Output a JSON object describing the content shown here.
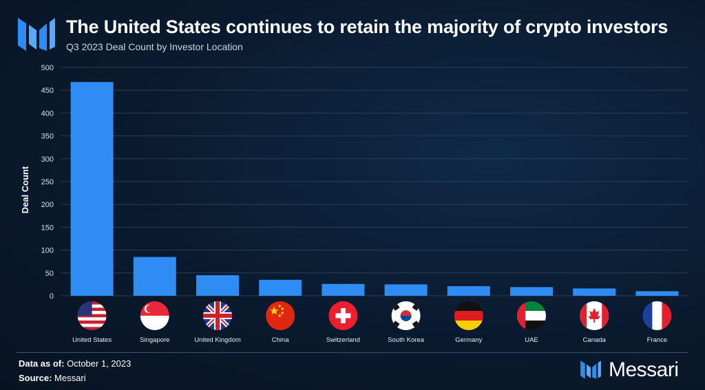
{
  "header": {
    "title": "The United States continues to retain the majority of crypto investors",
    "subtitle": "Q3 2023 Deal Count by Investor Location"
  },
  "colors": {
    "accent": "#2f8cf3",
    "background": "#0a1a2e",
    "grid": "#2b3f58"
  },
  "chart_data": {
    "type": "bar",
    "title": "The United States continues to retain the majority of crypto investors",
    "subtitle": "Q3 2023 Deal Count by Investor Location",
    "xlabel": "",
    "ylabel": "Deal Count",
    "ylim": [
      0,
      500
    ],
    "yticks": [
      0,
      50,
      100,
      150,
      200,
      250,
      300,
      350,
      400,
      450,
      500
    ],
    "grid": true,
    "categories": [
      "United States",
      "Singapore",
      "United Kingdom",
      "China",
      "Switzerland",
      "South Korea",
      "Germany",
      "UAE",
      "Canada",
      "France"
    ],
    "values": [
      468,
      85,
      45,
      35,
      26,
      25,
      21,
      19,
      16,
      10
    ],
    "category_icons": [
      "us-flag-icon",
      "singapore-flag-icon",
      "uk-flag-icon",
      "china-flag-icon",
      "switzerland-flag-icon",
      "south-korea-flag-icon",
      "germany-flag-icon",
      "uae-flag-icon",
      "canada-flag-icon",
      "france-flag-icon"
    ]
  },
  "footer": {
    "data_as_of_label": "Data as of:",
    "data_as_of_value": "October 1, 2023",
    "source_label": "Source:",
    "source_value": "Messari"
  },
  "brand": {
    "name": "Messari",
    "logo_icon": "messari-logo-icon"
  }
}
